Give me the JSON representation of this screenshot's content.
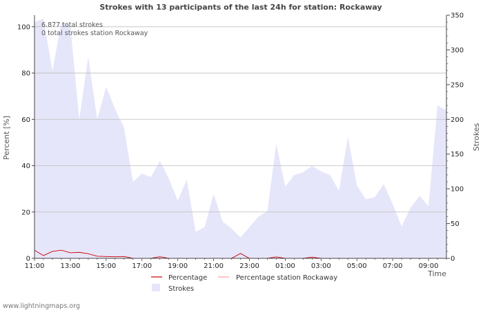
{
  "chart_data": {
    "type": "area",
    "title": "Strokes with 13 participants of the last 24h for station: Rockaway",
    "xlabel": "Time",
    "ylabel_left": "Percent   [%]",
    "ylabel_right": "Strokes",
    "ylim_left": [
      0,
      105
    ],
    "ylim_right": [
      0,
      350
    ],
    "yticks_left": [
      "0",
      "20",
      "40",
      "60",
      "80",
      "100"
    ],
    "yticks_right": [
      "0",
      "50",
      "100",
      "150",
      "200",
      "250",
      "300",
      "350"
    ],
    "x_tick_labels": [
      "11:00",
      "13:00",
      "15:00",
      "17:00",
      "19:00",
      "21:00",
      "23:00",
      "01:00",
      "03:00",
      "05:00",
      "07:00",
      "09:00"
    ],
    "x_interval_minutes": 30,
    "annotations": [
      "6.877 total strokes",
      "0 total strokes station Rockaway"
    ],
    "series": [
      {
        "name": "Strokes",
        "axis": "right",
        "color": "#e6e6fa",
        "values": [
          340,
          345,
          270,
          340,
          335,
          200,
          290,
          200,
          247,
          215,
          188,
          110,
          122,
          117,
          140,
          115,
          83,
          113,
          38,
          45,
          93,
          53,
          43,
          30,
          45,
          60,
          68,
          165,
          103,
          120,
          124,
          133,
          125,
          120,
          97,
          175,
          105,
          85,
          88,
          107,
          78,
          46,
          73,
          90,
          75,
          220,
          213
        ]
      },
      {
        "name": "Percentage",
        "axis": "left",
        "color": "#cc0000",
        "values": [
          3.5,
          1.2,
          3.0,
          3.5,
          2.4,
          2.6,
          2.0,
          0.9,
          0.8,
          0.7,
          0.8,
          0.0,
          0.0,
          0.0,
          0.7,
          0.0,
          0.0,
          0.0,
          0.0,
          0.0,
          0.0,
          0.0,
          0.0,
          2.1,
          0.0,
          0.0,
          0.0,
          0.6,
          0.0,
          0.0,
          0.0,
          0.5,
          0.0,
          0.0,
          0.0,
          0.0,
          0.0,
          0.0,
          0.0,
          0.0,
          0.0,
          0.0,
          0.0,
          0.0,
          0.0,
          0.0,
          0.0
        ]
      },
      {
        "name": "Percentage station Rockaway",
        "axis": "left",
        "color": "#ff9999",
        "values": [
          0,
          0,
          0,
          0,
          0,
          0,
          0,
          0,
          0,
          0,
          0,
          0,
          0,
          0,
          0,
          0,
          0,
          0,
          0,
          0,
          0,
          0,
          0,
          0,
          0,
          0,
          0,
          0,
          0,
          0,
          0,
          0,
          0,
          0,
          0,
          0,
          0,
          0,
          0,
          0,
          0,
          0,
          0,
          0,
          0,
          0,
          0
        ]
      }
    ],
    "legend": [
      {
        "name": "Percentage",
        "type": "line",
        "color": "#cc0000"
      },
      {
        "name": "Percentage station Rockaway",
        "type": "line",
        "color": "#ff9999"
      },
      {
        "name": "Strokes",
        "type": "box",
        "color": "#e6e6fa"
      }
    ],
    "legend_position": "bottom-center"
  },
  "footer": {
    "watermark": "www.lightningmaps.org"
  }
}
